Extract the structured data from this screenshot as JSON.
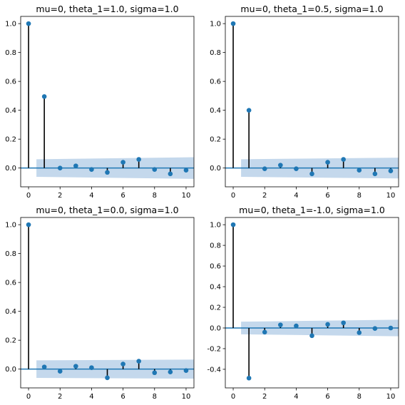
{
  "figure": {
    "marker_color": "#1f77b4",
    "band_color": "#c4d8ec",
    "stem_color": "#000000",
    "zero_line_color": "#1f77b4"
  },
  "chart_data": [
    {
      "type": "stem",
      "title": "mu=0, theta_1=1.0, sigma=1.0",
      "x": [
        0,
        1,
        2,
        3,
        4,
        5,
        6,
        7,
        8,
        9,
        10
      ],
      "values": [
        1.0,
        0.495,
        0.0,
        0.015,
        -0.01,
        -0.03,
        0.04,
        0.06,
        -0.01,
        -0.04,
        -0.015
      ],
      "confidence_band": {
        "x_range": [
          0.5,
          10.5
        ],
        "lower": [
          -0.061,
          -0.075
        ],
        "upper": [
          0.061,
          0.075
        ]
      },
      "xlim": [
        -0.5,
        10.5
      ],
      "ylim": [
        -0.13,
        1.05
      ],
      "xticks": [
        0,
        2,
        4,
        6,
        8,
        10
      ],
      "yticks": [
        0.0,
        0.2,
        0.4,
        0.6,
        0.8,
        1.0
      ],
      "ytick_labels": [
        "0.0",
        "0.2",
        "0.4",
        "0.6",
        "0.8",
        "1.0"
      ]
    },
    {
      "type": "stem",
      "title": "mu=0, theta_1=0.5, sigma=1.0",
      "x": [
        0,
        1,
        2,
        3,
        4,
        5,
        6,
        7,
        8,
        9,
        10
      ],
      "values": [
        1.0,
        0.4,
        -0.005,
        0.02,
        -0.005,
        -0.04,
        0.04,
        0.06,
        -0.015,
        -0.04,
        -0.02
      ],
      "confidence_band": {
        "x_range": [
          0.5,
          10.5
        ],
        "lower": [
          -0.061,
          -0.072
        ],
        "upper": [
          0.061,
          0.072
        ]
      },
      "xlim": [
        -0.5,
        10.5
      ],
      "ylim": [
        -0.13,
        1.05
      ],
      "xticks": [
        0,
        2,
        4,
        6,
        8,
        10
      ],
      "yticks": [
        0.0,
        0.2,
        0.4,
        0.6,
        0.8,
        1.0
      ],
      "ytick_labels": [
        "0.0",
        "0.2",
        "0.4",
        "0.6",
        "0.8",
        "1.0"
      ]
    },
    {
      "type": "stem",
      "title": "mu=0, theta_1=0.0, sigma=1.0",
      "x": [
        0,
        1,
        2,
        3,
        4,
        5,
        6,
        7,
        8,
        9,
        10
      ],
      "values": [
        1.0,
        0.015,
        -0.015,
        0.02,
        0.01,
        -0.06,
        0.035,
        0.055,
        -0.025,
        -0.02,
        -0.01
      ],
      "confidence_band": {
        "x_range": [
          0.5,
          10.5
        ],
        "lower": [
          -0.061,
          -0.066
        ],
        "upper": [
          0.061,
          0.066
        ]
      },
      "xlim": [
        -0.5,
        10.5
      ],
      "ylim": [
        -0.13,
        1.05
      ],
      "xticks": [
        0,
        2,
        4,
        6,
        8,
        10
      ],
      "yticks": [
        0.0,
        0.2,
        0.4,
        0.6,
        0.8,
        1.0
      ],
      "ytick_labels": [
        "0.0",
        "0.2",
        "0.4",
        "0.6",
        "0.8",
        "1.0"
      ]
    },
    {
      "type": "stem",
      "title": "mu=0, theta_1=-1.0, sigma=1.0",
      "x": [
        0,
        1,
        2,
        3,
        4,
        5,
        6,
        7,
        8,
        9,
        10
      ],
      "values": [
        1.0,
        -0.485,
        -0.04,
        0.03,
        0.02,
        -0.075,
        0.035,
        0.05,
        -0.045,
        -0.005,
        0.0
      ],
      "confidence_band": {
        "x_range": [
          0.5,
          10.5
        ],
        "lower": [
          -0.061,
          -0.08
        ],
        "upper": [
          0.061,
          0.08
        ]
      },
      "xlim": [
        -0.5,
        10.5
      ],
      "ylim": [
        -0.58,
        1.07
      ],
      "xticks": [
        0,
        2,
        4,
        6,
        8,
        10
      ],
      "yticks": [
        -0.4,
        -0.2,
        0.0,
        0.2,
        0.4,
        0.6,
        0.8,
        1.0
      ],
      "ytick_labels": [
        "-0.4",
        "-0.2",
        "0.0",
        "0.2",
        "0.4",
        "0.6",
        "0.8",
        "1.0"
      ]
    }
  ]
}
